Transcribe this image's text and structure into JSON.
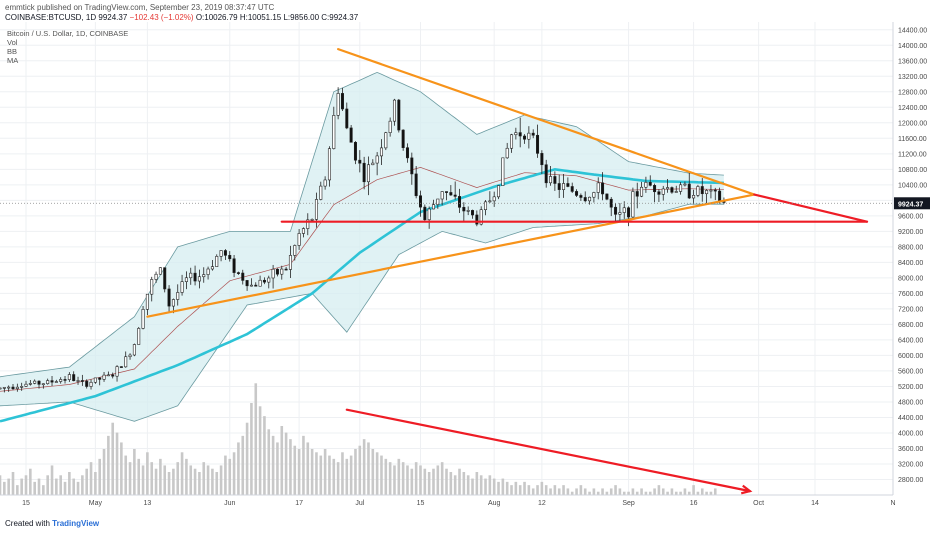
{
  "header": {
    "publisher_line": "emmtick published on TradingView.com, September 23, 2019 08:37:47 UTC",
    "symbol_line_prefix": "COINBASE:BTCUSD, 1D",
    "last": "9924.37",
    "change": "−102.43 (−1.02%)",
    "ohlc": "O:10026.79 H:10051.15 L:9856.00 C:9924.37",
    "legend_title": "Bitcoin / U.S. Dollar, 1D, COINBASE",
    "indicators": [
      "Vol",
      "BB",
      "MA"
    ]
  },
  "footer": {
    "created_with": "Created with",
    "brand": "TradingView"
  },
  "colors": {
    "up": "#3a3a3a",
    "down": "#111111",
    "ma": "#2ec3d6",
    "bb_fill": "#d6eef0",
    "bb_line": "#6a9aa0",
    "basis": "#a02a2a",
    "orange": "#f7931a",
    "red": "#ee1c25",
    "volume": "#c8c8c8",
    "price_label_bg": "#131722"
  },
  "chart_data": {
    "type": "candlestick",
    "title": "Bitcoin / U.S. Dollar, 1D, COINBASE",
    "current_price": 9924.37,
    "y_range": [
      2400,
      14600
    ],
    "y_ticks": [
      2800,
      3200,
      3600,
      4000,
      4400,
      4800,
      5200,
      5600,
      6000,
      6400,
      6800,
      7200,
      7600,
      8000,
      8400,
      8800,
      9200,
      9600,
      10000,
      10400,
      10800,
      11200,
      11600,
      12000,
      12400,
      12800,
      13200,
      13600,
      14000,
      14400
    ],
    "x_range": [
      "2019-04-09",
      "2019-11-01"
    ],
    "x_ticks": [
      {
        "date": "2019-04-15",
        "label": "15"
      },
      {
        "date": "2019-05-01",
        "label": "May"
      },
      {
        "date": "2019-05-13",
        "label": "13"
      },
      {
        "date": "2019-06-01",
        "label": "Jun"
      },
      {
        "date": "2019-06-17",
        "label": "17"
      },
      {
        "date": "2019-07-01",
        "label": "Jul"
      },
      {
        "date": "2019-07-15",
        "label": "15"
      },
      {
        "date": "2019-08-01",
        "label": "Aug"
      },
      {
        "date": "2019-08-12",
        "label": "12"
      },
      {
        "date": "2019-09-01",
        "label": "Sep"
      },
      {
        "date": "2019-09-16",
        "label": "16"
      },
      {
        "date": "2019-10-01",
        "label": "Oct"
      },
      {
        "date": "2019-10-14",
        "label": "14"
      },
      {
        "date": "2019-11-01",
        "label": "N"
      }
    ],
    "price_path": [
      [
        "2019-04-09",
        5150
      ],
      [
        "2019-04-13",
        5250
      ],
      [
        "2019-04-20",
        5300
      ],
      [
        "2019-04-25",
        5450
      ],
      [
        "2019-04-28",
        5250
      ],
      [
        "2019-05-05",
        5500
      ],
      [
        "2019-05-08",
        5900
      ],
      [
        "2019-05-10",
        6300
      ],
      [
        "2019-05-12",
        7300
      ],
      [
        "2019-05-14",
        7900
      ],
      [
        "2019-05-16",
        8200
      ],
      [
        "2019-05-18",
        7300
      ],
      [
        "2019-05-22",
        7950
      ],
      [
        "2019-05-26",
        8100
      ],
      [
        "2019-05-30",
        8700
      ],
      [
        "2019-06-03",
        8100
      ],
      [
        "2019-06-06",
        7800
      ],
      [
        "2019-06-10",
        8000
      ],
      [
        "2019-06-14",
        8250
      ],
      [
        "2019-06-17",
        9100
      ],
      [
        "2019-06-20",
        9550
      ],
      [
        "2019-06-23",
        10600
      ],
      [
        "2019-06-26",
        12900
      ],
      [
        "2019-06-28",
        11800
      ],
      [
        "2019-07-02",
        10600
      ],
      [
        "2019-07-05",
        11200
      ],
      [
        "2019-07-09",
        12400
      ],
      [
        "2019-07-11",
        11400
      ],
      [
        "2019-07-14",
        10200
      ],
      [
        "2019-07-16",
        9500
      ],
      [
        "2019-07-20",
        10300
      ],
      [
        "2019-07-24",
        9850
      ],
      [
        "2019-07-28",
        9500
      ],
      [
        "2019-08-01",
        10200
      ],
      [
        "2019-08-05",
        11700
      ],
      [
        "2019-08-08",
        11800
      ],
      [
        "2019-08-11",
        11300
      ],
      [
        "2019-08-14",
        10400
      ],
      [
        "2019-08-18",
        10300
      ],
      [
        "2019-08-22",
        10100
      ],
      [
        "2019-08-26",
        10300
      ],
      [
        "2019-08-29",
        9500
      ],
      [
        "2019-09-01",
        9800
      ],
      [
        "2019-09-04",
        10400
      ],
      [
        "2019-09-08",
        10350
      ],
      [
        "2019-09-12",
        10300
      ],
      [
        "2019-09-16",
        10250
      ],
      [
        "2019-09-20",
        10150
      ],
      [
        "2019-09-23",
        9924.37
      ]
    ],
    "ma_path": [
      [
        "2019-04-09",
        4300
      ],
      [
        "2019-05-01",
        4950
      ],
      [
        "2019-05-20",
        5750
      ],
      [
        "2019-06-05",
        6550
      ],
      [
        "2019-06-20",
        7600
      ],
      [
        "2019-07-01",
        8650
      ],
      [
        "2019-07-15",
        9700
      ],
      [
        "2019-08-01",
        10350
      ],
      [
        "2019-08-15",
        10800
      ],
      [
        "2019-08-25",
        10650
      ],
      [
        "2019-09-05",
        10500
      ],
      [
        "2019-09-23",
        10450
      ]
    ],
    "bb_upper": [
      [
        "2019-04-09",
        5450
      ],
      [
        "2019-04-25",
        5700
      ],
      [
        "2019-05-10",
        7000
      ],
      [
        "2019-05-20",
        8800
      ],
      [
        "2019-06-01",
        9200
      ],
      [
        "2019-06-15",
        9200
      ],
      [
        "2019-06-25",
        12800
      ],
      [
        "2019-07-05",
        13300
      ],
      [
        "2019-07-15",
        12800
      ],
      [
        "2019-07-28",
        11700
      ],
      [
        "2019-08-08",
        12200
      ],
      [
        "2019-08-20",
        11900
      ],
      [
        "2019-09-01",
        11000
      ],
      [
        "2019-09-15",
        10700
      ],
      [
        "2019-09-23",
        10650
      ]
    ],
    "bb_lower": [
      [
        "2019-04-09",
        4700
      ],
      [
        "2019-04-25",
        4800
      ],
      [
        "2019-05-10",
        4300
      ],
      [
        "2019-05-20",
        4700
      ],
      [
        "2019-06-05",
        7300
      ],
      [
        "2019-06-20",
        7600
      ],
      [
        "2019-06-28",
        6600
      ],
      [
        "2019-07-10",
        8600
      ],
      [
        "2019-07-20",
        9200
      ],
      [
        "2019-07-30",
        8900
      ],
      [
        "2019-08-10",
        9300
      ],
      [
        "2019-08-25",
        9400
      ],
      [
        "2019-09-05",
        9600
      ],
      [
        "2019-09-15",
        9900
      ],
      [
        "2019-09-23",
        9900
      ]
    ],
    "trendlines": [
      {
        "name": "descending-resistance",
        "color": "orange",
        "from": [
          "2019-06-26",
          13900
        ],
        "to": [
          "2019-09-30",
          10150
        ]
      },
      {
        "name": "ascending-support",
        "color": "orange",
        "from": [
          "2019-05-13",
          7000
        ],
        "to": [
          "2019-09-30",
          10150
        ]
      },
      {
        "name": "horizontal-support",
        "color": "red",
        "from": [
          "2019-06-13",
          9450
        ],
        "to": [
          "2019-10-26",
          9450
        ]
      },
      {
        "name": "apex-projection",
        "color": "red",
        "from": [
          "2019-09-30",
          10150
        ],
        "to": [
          "2019-10-26",
          9450
        ]
      },
      {
        "name": "volume-decline",
        "color": "red",
        "from": [
          "2019-06-28",
          4600
        ],
        "to": [
          "2019-09-29",
          2500
        ],
        "arrow": true
      }
    ],
    "volume_ylim": [
      2500,
      6000
    ],
    "volume": {
      "start": "2019-04-09",
      "values": [
        3100,
        2900,
        3000,
        3200,
        2800,
        3000,
        3100,
        3300,
        2900,
        3000,
        2800,
        3100,
        3400,
        3000,
        3100,
        2900,
        3200,
        3000,
        2900,
        3100,
        3300,
        3500,
        3200,
        3600,
        3900,
        4300,
        4700,
        4400,
        4100,
        3700,
        3500,
        3900,
        3600,
        3400,
        3800,
        3500,
        3300,
        3600,
        3400,
        3200,
        3300,
        3500,
        3800,
        3600,
        3400,
        3300,
        3200,
        3500,
        3400,
        3300,
        3200,
        3400,
        3700,
        3600,
        3800,
        4100,
        4300,
        4700,
        5300,
        5900,
        5200,
        4900,
        4500,
        4300,
        4100,
        4600,
        4400,
        4200,
        4000,
        3900,
        4300,
        4100,
        3900,
        3800,
        3700,
        3900,
        3700,
        3600,
        3500,
        3800,
        3600,
        3700,
        3900,
        4000,
        4200,
        4100,
        3900,
        3800,
        3700,
        3600,
        3500,
        3400,
        3600,
        3500,
        3400,
        3300,
        3500,
        3400,
        3300,
        3200,
        3300,
        3400,
        3500,
        3300,
        3200,
        3100,
        3300,
        3200,
        3100,
        3000,
        3200,
        3100,
        3000,
        3100,
        3000,
        2900,
        3000,
        2900,
        2800,
        2900,
        2800,
        2900,
        2800,
        2700,
        2800,
        2900,
        2800,
        2700,
        2800,
        2700,
        2800,
        2700,
        2600,
        2700,
        2800,
        2700,
        2600,
        2700,
        2600,
        2700,
        2600,
        2700,
        2800,
        2700,
        2600,
        2600,
        2700,
        2600,
        2700,
        2600,
        2600,
        2700,
        2800,
        2700,
        2600,
        2700,
        2600,
        2600,
        2700,
        2600,
        2800,
        2600,
        2700,
        2600,
        2600,
        2700
      ]
    }
  }
}
